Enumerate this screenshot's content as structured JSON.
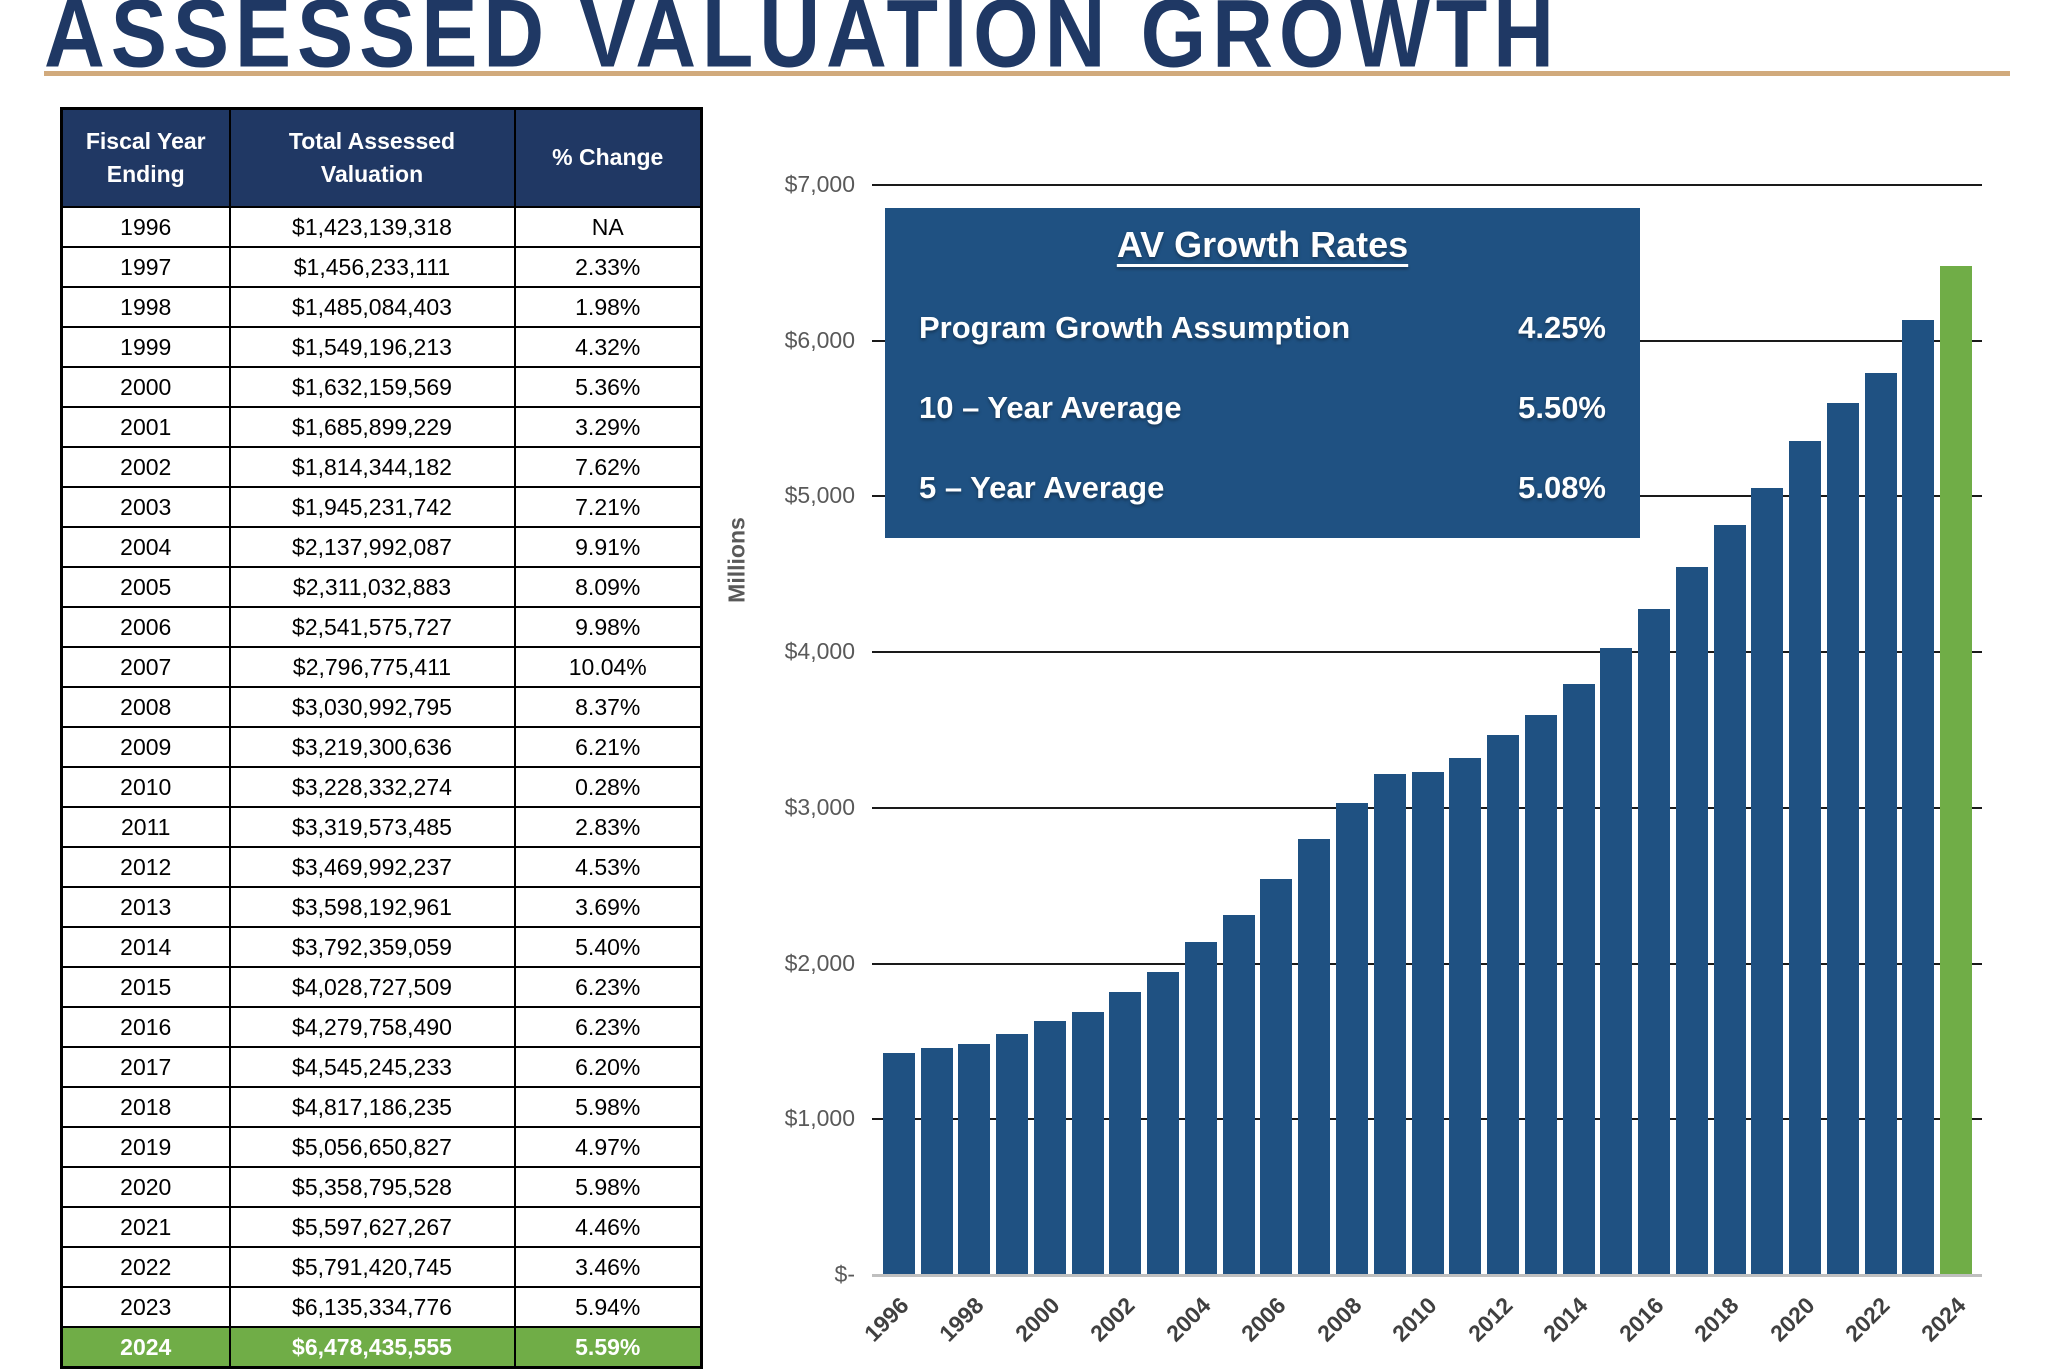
{
  "page": {
    "title": "ASSESSED VALUATION GROWTH"
  },
  "table": {
    "headers": [
      "Fiscal Year Ending",
      "Total Assessed Valuation",
      "% Change"
    ],
    "rows": [
      [
        "1996",
        "$1,423,139,318",
        "NA"
      ],
      [
        "1997",
        "$1,456,233,111",
        "2.33%"
      ],
      [
        "1998",
        "$1,485,084,403",
        "1.98%"
      ],
      [
        "1999",
        "$1,549,196,213",
        "4.32%"
      ],
      [
        "2000",
        "$1,632,159,569",
        "5.36%"
      ],
      [
        "2001",
        "$1,685,899,229",
        "3.29%"
      ],
      [
        "2002",
        "$1,814,344,182",
        "7.62%"
      ],
      [
        "2003",
        "$1,945,231,742",
        "7.21%"
      ],
      [
        "2004",
        "$2,137,992,087",
        "9.91%"
      ],
      [
        "2005",
        "$2,311,032,883",
        "8.09%"
      ],
      [
        "2006",
        "$2,541,575,727",
        "9.98%"
      ],
      [
        "2007",
        "$2,796,775,411",
        "10.04%"
      ],
      [
        "2008",
        "$3,030,992,795",
        "8.37%"
      ],
      [
        "2009",
        "$3,219,300,636",
        "6.21%"
      ],
      [
        "2010",
        "$3,228,332,274",
        "0.28%"
      ],
      [
        "2011",
        "$3,319,573,485",
        "2.83%"
      ],
      [
        "2012",
        "$3,469,992,237",
        "4.53%"
      ],
      [
        "2013",
        "$3,598,192,961",
        "3.69%"
      ],
      [
        "2014",
        "$3,792,359,059",
        "5.40%"
      ],
      [
        "2015",
        "$4,028,727,509",
        "6.23%"
      ],
      [
        "2016",
        "$4,279,758,490",
        "6.23%"
      ],
      [
        "2017",
        "$4,545,245,233",
        "6.20%"
      ],
      [
        "2018",
        "$4,817,186,235",
        "5.98%"
      ],
      [
        "2019",
        "$5,056,650,827",
        "4.97%"
      ],
      [
        "2020",
        "$5,358,795,528",
        "5.98%"
      ],
      [
        "2021",
        "$5,597,627,267",
        "4.46%"
      ],
      [
        "2022",
        "$5,791,420,745",
        "3.46%"
      ],
      [
        "2023",
        "$6,135,334,776",
        "5.94%"
      ],
      [
        "2024",
        "$6,478,435,555",
        "5.59%"
      ]
    ],
    "highlight_row_index": 28
  },
  "growth_box": {
    "title": "AV Growth Rates",
    "items": [
      {
        "label": "Program Growth Assumption",
        "value": "4.25%"
      },
      {
        "label": "10 – Year Average",
        "value": "5.50%"
      },
      {
        "label": "5 – Year Average",
        "value": "5.08%"
      }
    ]
  },
  "chart_data": {
    "type": "bar",
    "title": "",
    "xlabel": "",
    "ylabel": "Millions",
    "ylim": [
      0,
      7000
    ],
    "grid": true,
    "legend_position": "none",
    "categories": [
      1996,
      1997,
      1998,
      1999,
      2000,
      2001,
      2002,
      2003,
      2004,
      2005,
      2006,
      2007,
      2008,
      2009,
      2010,
      2011,
      2012,
      2013,
      2014,
      2015,
      2016,
      2017,
      2018,
      2019,
      2020,
      2021,
      2022,
      2023,
      2024
    ],
    "values": [
      1423.1,
      1456.2,
      1485.1,
      1549.2,
      1632.2,
      1685.9,
      1814.3,
      1945.2,
      2138.0,
      2311.0,
      2541.6,
      2796.8,
      3031.0,
      3219.3,
      3228.3,
      3319.6,
      3470.0,
      3598.2,
      3792.4,
      4028.7,
      4279.8,
      4545.2,
      4817.2,
      5056.7,
      5358.8,
      5597.6,
      5791.4,
      6135.3,
      6478.4
    ],
    "ytick_labels": [
      "$-",
      "$1,000",
      "$2,000",
      "$3,000",
      "$4,000",
      "$5,000",
      "$6,000",
      "$7,000"
    ],
    "xtick_labels": [
      "1996",
      "1998",
      "2000",
      "2002",
      "2004",
      "2006",
      "2008",
      "2010",
      "2012",
      "2014",
      "2016",
      "2018",
      "2020",
      "2022",
      "2024"
    ],
    "bar_color": "#1f5182",
    "highlight_color": "#70ad47",
    "highlight_index": 28
  },
  "colors": {
    "title_navy": "#1f3864",
    "header_navy": "#203864",
    "bar_blue": "#1f5182",
    "green": "#70ad47",
    "tan_rule": "#d1aa7c",
    "axis_text": "#595959",
    "gridline": "#1a1a1a"
  }
}
